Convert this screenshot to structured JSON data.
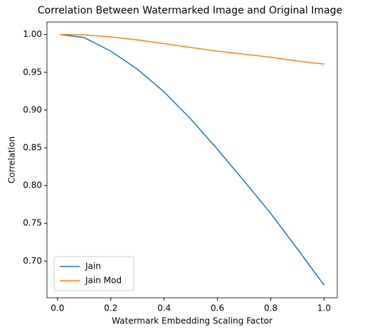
{
  "chart_data": {
    "type": "line",
    "title": "Correlation Between Watermarked Image and Original Image",
    "xlabel": "Watermark Embedding Scaling Factor",
    "ylabel": "Correlation",
    "x": [
      0.01,
      0.1,
      0.2,
      0.3,
      0.4,
      0.5,
      0.6,
      0.7,
      0.8,
      0.9,
      1.0
    ],
    "series": [
      {
        "name": "Jain",
        "color": "#1f77b4",
        "values": [
          1.0,
          0.996,
          0.978,
          0.954,
          0.924,
          0.888,
          0.848,
          0.806,
          0.763,
          0.716,
          0.668
        ]
      },
      {
        "name": "Jain Mod",
        "color": "#ff7f0e",
        "values": [
          1.0,
          0.9995,
          0.997,
          0.993,
          0.988,
          0.983,
          0.978,
          0.974,
          0.97,
          0.965,
          0.961
        ]
      }
    ],
    "xlim": [
      -0.0395,
      1.0495
    ],
    "ylim": [
      0.6514,
      1.0166
    ],
    "xticks": [
      {
        "value": 0,
        "label": "0.0"
      },
      0.2,
      0.4,
      0.6,
      0.8,
      {
        "value": 1,
        "label": "1.0"
      }
    ],
    "yticks": [
      {
        "value": 0.7,
        "label": "0.70"
      },
      0.75,
      {
        "value": 0.8,
        "label": "0.80"
      },
      0.85,
      {
        "value": 0.9,
        "label": "0.90"
      },
      0.95,
      {
        "value": 1,
        "label": "1.00"
      }
    ],
    "legend": "lower left"
  }
}
